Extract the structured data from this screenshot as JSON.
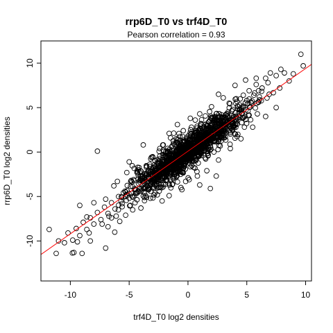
{
  "chart_data": {
    "type": "scatter",
    "title": "rrp6D_T0 vs trf4D_T0",
    "subtitle": "Pearson correlation =  0.93",
    "xlabel": "trf4D_T0 log2 densities",
    "ylabel": "rrp6D_T0 log2 densities",
    "xlim": [
      -12.5,
      10.5
    ],
    "ylim": [
      -14.5,
      12.5
    ],
    "xticks": [
      -10,
      -5,
      0,
      5,
      10
    ],
    "yticks": [
      -10,
      -5,
      0,
      5,
      10
    ],
    "grid": false,
    "marker": "open-circle",
    "regression_line": {
      "slope": 0.93,
      "intercept": 0.1,
      "color": "#ff0000"
    },
    "points": [
      [
        9.6,
        11.0
      ],
      [
        9.8,
        9.7
      ],
      [
        8.2,
        8.9
      ],
      [
        7.9,
        9.3
      ],
      [
        7.5,
        8.6
      ],
      [
        7.0,
        8.9
      ],
      [
        6.8,
        7.8
      ],
      [
        6.6,
        8.3
      ],
      [
        6.3,
        7.2
      ],
      [
        6.0,
        6.9
      ],
      [
        5.8,
        7.6
      ],
      [
        5.6,
        6.4
      ],
      [
        5.2,
        6.9
      ],
      [
        5.0,
        5.8
      ],
      [
        4.7,
        6.4
      ],
      [
        4.4,
        5.3
      ],
      [
        4.1,
        6.0
      ],
      [
        3.8,
        4.8
      ],
      [
        3.5,
        5.5
      ],
      [
        3.2,
        4.2
      ],
      [
        2.6,
        6.5
      ],
      [
        2.9,
        3.9
      ],
      [
        2.4,
        4.3
      ],
      [
        2.1,
        2.6
      ],
      [
        1.8,
        3.4
      ],
      [
        1.5,
        1.8
      ],
      [
        1.2,
        2.7
      ],
      [
        1.0,
        0.9
      ],
      [
        0.7,
        1.6
      ],
      [
        0.4,
        0.2
      ],
      [
        0.1,
        1.0
      ],
      [
        -0.2,
        -0.4
      ],
      [
        -0.5,
        0.4
      ],
      [
        -0.8,
        -1.2
      ],
      [
        -1.1,
        -0.3
      ],
      [
        -1.4,
        -1.9
      ],
      [
        -1.7,
        -0.9
      ],
      [
        -2.0,
        -2.4
      ],
      [
        -2.3,
        -1.6
      ],
      [
        -2.6,
        -3.1
      ],
      [
        -2.9,
        -2.2
      ],
      [
        -3.2,
        -3.6
      ],
      [
        -3.5,
        -2.6
      ],
      [
        -3.8,
        -4.1
      ],
      [
        -4.1,
        -3.2
      ],
      [
        -4.4,
        -4.6
      ],
      [
        -4.7,
        -3.9
      ],
      [
        -5.0,
        -5.2
      ],
      [
        -5.3,
        -4.5
      ],
      [
        -5.6,
        -5.8
      ],
      [
        -5.9,
        -5.0
      ],
      [
        -6.2,
        -6.4
      ],
      [
        -6.5,
        -5.7
      ],
      [
        -6.8,
        -6.9
      ],
      [
        -7.1,
        -6.2
      ],
      [
        -7.4,
        -7.6
      ],
      [
        -7.7,
        -6.8
      ],
      [
        -8.0,
        -8.1
      ],
      [
        -8.3,
        -7.4
      ],
      [
        -8.6,
        -8.7
      ],
      [
        -8.9,
        -7.9
      ],
      [
        -9.2,
        -9.4
      ],
      [
        -9.5,
        -8.6
      ],
      [
        -9.8,
        -9.9
      ],
      [
        -10.2,
        -9.1
      ],
      [
        -10.5,
        -10.2
      ],
      [
        -11.0,
        -10.0
      ],
      [
        -11.8,
        -8.7
      ],
      [
        -11.2,
        -11.4
      ],
      [
        -9.7,
        -11.3
      ],
      [
        -9.0,
        -11.4
      ],
      [
        -7.0,
        -10.8
      ],
      [
        -8.3,
        -10.0
      ],
      [
        -6.5,
        -7.4
      ],
      [
        -6.8,
        -8.4
      ],
      [
        -5.3,
        -7.1
      ],
      [
        -5.8,
        -7.8
      ],
      [
        -4.0,
        -6.3
      ],
      [
        -4.7,
        -6.5
      ],
      [
        -3.2,
        -5.2
      ],
      [
        -4.5,
        -5.7
      ],
      [
        -3.5,
        -1.6
      ],
      [
        -2.8,
        -1.0
      ],
      [
        -3.8,
        0.8
      ],
      [
        -5.2,
        -2.3
      ],
      [
        -6.3,
        -3.8
      ],
      [
        -5.0,
        -1.1
      ],
      [
        -7.7,
        0.1
      ],
      [
        -6.0,
        -3.3
      ],
      [
        -7.0,
        -5.3
      ],
      [
        -8.0,
        -5.7
      ],
      [
        -9.2,
        -6.0
      ],
      [
        -8.6,
        -7.3
      ],
      [
        -4.2,
        -2.0
      ],
      [
        -2.1,
        0.8
      ],
      [
        -1.6,
        2.1
      ],
      [
        -0.9,
        3.1
      ],
      [
        0.2,
        3.8
      ],
      [
        1.0,
        4.3
      ],
      [
        2.0,
        5.1
      ],
      [
        3.0,
        6.1
      ],
      [
        4.0,
        7.5
      ],
      [
        4.9,
        8.1
      ],
      [
        5.8,
        8.3
      ],
      [
        0.8,
        -2.7
      ],
      [
        1.6,
        -2.1
      ],
      [
        2.6,
        -0.9
      ],
      [
        3.6,
        0.4
      ],
      [
        4.5,
        1.5
      ],
      [
        5.5,
        2.8
      ],
      [
        6.6,
        4.0
      ],
      [
        7.5,
        5.0
      ],
      [
        0.1,
        -3.1
      ],
      [
        -0.2,
        -3.3
      ],
      [
        1.0,
        -3.7
      ],
      [
        -0.6,
        -4.0
      ],
      [
        -1.6,
        -4.9
      ],
      [
        -2.2,
        -5.5
      ],
      [
        -2.8,
        -4.6
      ],
      [
        1.9,
        -4.1
      ],
      [
        2.4,
        -2.7
      ],
      [
        3.1,
        2.3
      ],
      [
        -2.9,
        -4.1
      ],
      [
        -1.3,
        -3.6
      ],
      [
        0.6,
        -1.8
      ],
      [
        1.4,
        0.2
      ],
      [
        2.2,
        1.2
      ],
      [
        3.3,
        2.9
      ],
      [
        4.2,
        3.8
      ],
      [
        5.1,
        4.6
      ],
      [
        6.0,
        5.6
      ],
      [
        -0.4,
        2.4
      ],
      [
        0.3,
        2.8
      ],
      [
        -1.0,
        1.5
      ],
      [
        -2.4,
        0.4
      ],
      [
        -3.0,
        -0.6
      ],
      [
        2.8,
        1.7
      ],
      [
        4.8,
        2.8
      ],
      [
        5.9,
        4.3
      ],
      [
        6.9,
        6.5
      ],
      [
        7.8,
        7.2
      ],
      [
        8.6,
        8.0
      ],
      [
        1.1,
        3.2
      ],
      [
        2.3,
        4.0
      ],
      [
        3.4,
        3.4
      ],
      [
        4.6,
        4.4
      ],
      [
        5.4,
        5.5
      ],
      [
        -0.7,
        -2.2
      ],
      [
        -1.9,
        -3.2
      ],
      [
        -3.6,
        -4.9
      ],
      [
        -4.9,
        -6.0
      ],
      [
        -6.1,
        -7.2
      ],
      [
        -7.3,
        -8.1
      ],
      [
        -8.4,
        -9.1
      ],
      [
        -9.4,
        -10.1
      ]
    ]
  }
}
